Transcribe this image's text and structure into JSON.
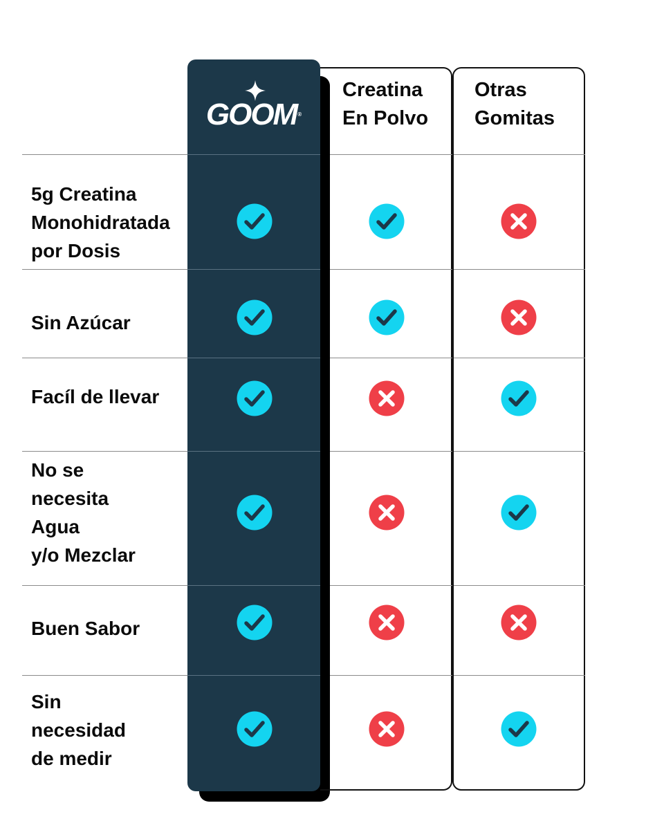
{
  "columns": {
    "goom": {
      "brand": "GOOM",
      "registered": "®"
    },
    "powder": {
      "line1": "Creatina",
      "line2": "En Polvo"
    },
    "other": {
      "line1": "Otras",
      "line2": "Gomitas"
    }
  },
  "rows": [
    {
      "label_lines": [
        "5g Creatina",
        "Monohidratada",
        "por Dosis"
      ],
      "goom": "check",
      "powder": "check",
      "other": "cross"
    },
    {
      "label_lines": [
        "Sin Azúcar"
      ],
      "goom": "check",
      "powder": "check",
      "other": "cross"
    },
    {
      "label_lines": [
        "Facíl de llevar"
      ],
      "goom": "check",
      "powder": "cross",
      "other": "check"
    },
    {
      "label_lines": [
        "No se",
        "necesita",
        "Agua",
        "y/o Mezclar"
      ],
      "goom": "check",
      "powder": "cross",
      "other": "check"
    },
    {
      "label_lines": [
        "Buen Sabor"
      ],
      "goom": "check",
      "powder": "cross",
      "other": "cross"
    },
    {
      "label_lines": [
        "Sin",
        "necesidad",
        "de medir"
      ],
      "goom": "check",
      "powder": "cross",
      "other": "check"
    }
  ],
  "colors": {
    "goom_column": "#1c3849",
    "check": "#14d4f0",
    "check_mark": "#1c3849",
    "cross": "#ef3f48",
    "cross_mark": "#ffffff"
  },
  "icons": {
    "check": "check-circle-icon",
    "cross": "x-circle-icon",
    "logo": "sparkle-star-icon"
  }
}
